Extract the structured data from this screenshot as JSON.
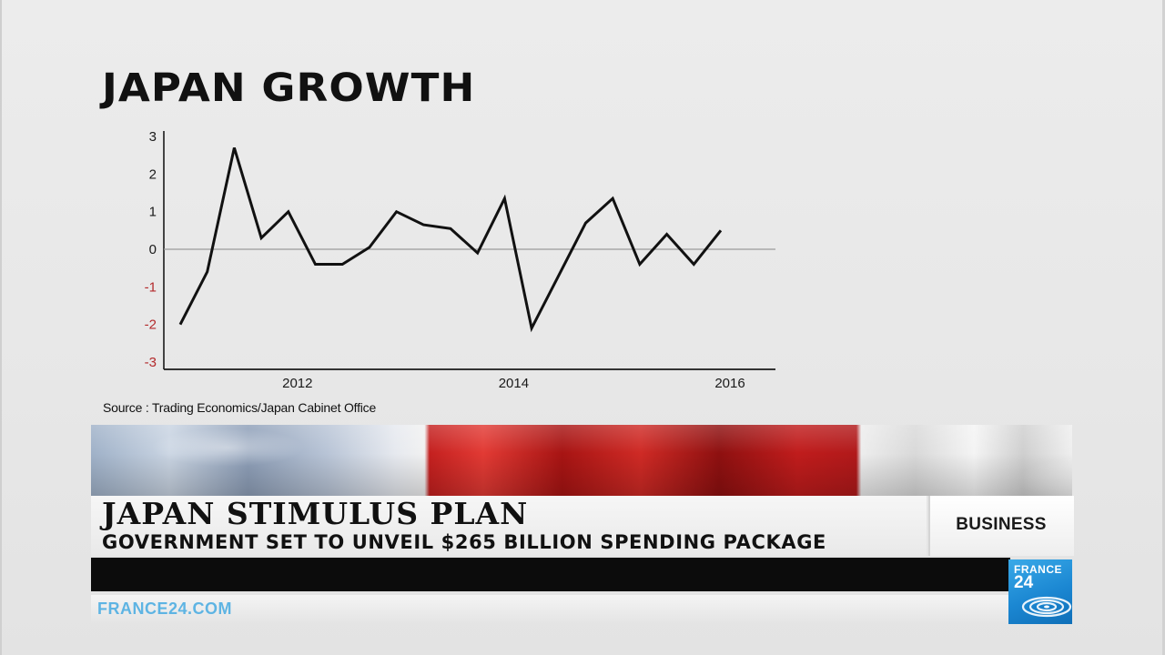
{
  "chart_data": {
    "type": "line",
    "title": "JAPAN GROWTH",
    "source": "Source : Trading Economics/Japan Cabinet Office",
    "x_tick_labels": [
      "2012",
      "2014",
      "2016"
    ],
    "y_tick_labels": [
      "3",
      "2",
      "1",
      "0",
      "-1",
      "-2",
      "-3"
    ],
    "ylim": [
      -3,
      3
    ],
    "x_unit": "quarter",
    "series": [
      {
        "x": [
          "2011-Q1",
          "2011-Q2",
          "2011-Q3",
          "2011-Q4",
          "2012-Q1",
          "2012-Q2",
          "2012-Q3",
          "2012-Q4",
          "2013-Q1",
          "2013-Q2",
          "2013-Q3",
          "2013-Q4",
          "2014-Q1",
          "2014-Q2",
          "2014-Q3",
          "2014-Q4",
          "2015-Q1",
          "2015-Q2",
          "2015-Q3",
          "2015-Q4",
          "2016-Q1",
          "2016-Q2"
        ],
        "values": [
          -2.0,
          -0.6,
          2.7,
          0.3,
          1.0,
          -0.4,
          -0.4,
          0.05,
          1.0,
          0.65,
          0.55,
          -0.1,
          1.35,
          -2.1,
          -0.7,
          0.7,
          1.35,
          -0.4,
          0.4,
          -0.4,
          0.5,
          null
        ]
      }
    ],
    "zero_line": true,
    "grid": false,
    "colors": {
      "line": "#111111",
      "negative_tick_labels": "#b3292b",
      "zero_line": "#9a9a9a"
    }
  },
  "lower_third": {
    "headline": "JAPAN STIMULUS PLAN",
    "subheadline": "GOVERNMENT SET TO UNVEIL $265 BILLION SPENDING PACKAGE",
    "category": "BUSINESS",
    "website": "FRANCE24.COM",
    "logo_line1": "FRANCE",
    "logo_line2": "24",
    "colors": {
      "url": "#5eb4e3",
      "logo_bg": "#1b87d2"
    }
  }
}
